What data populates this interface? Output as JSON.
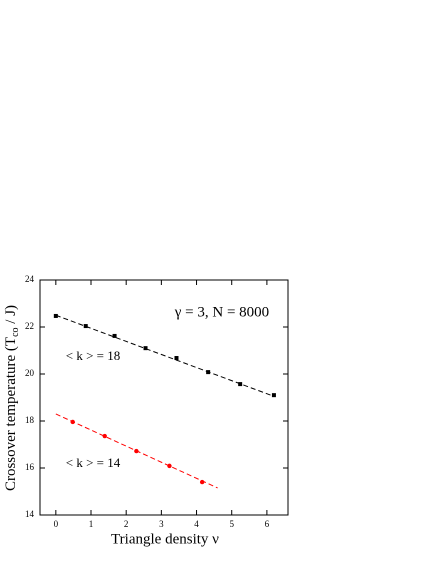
{
  "chart_data": {
    "type": "scatter",
    "annotation": "γ = 3,  N = 8000",
    "xlabel": "Triangle density  ν",
    "ylabel": [
      "Crossover temperature  (T",
      "co",
      "  / J)"
    ],
    "xlim": [
      -0.45,
      6.6
    ],
    "xticks": [
      0,
      1,
      2,
      3,
      4,
      5,
      6
    ],
    "ylim": [
      14,
      24
    ],
    "yticks": [
      14,
      16,
      18,
      20,
      22,
      24
    ],
    "series": [
      {
        "name": "< k > = 18",
        "color": "#000000",
        "marker": "square",
        "x": [
          0,
          0.85,
          1.67,
          2.55,
          3.43,
          4.33,
          5.24,
          6.2
        ],
        "values": [
          22.47,
          22.04,
          21.62,
          21.1,
          20.68,
          20.08,
          19.57,
          19.1
        ],
        "fit": {
          "x": [
            0,
            6.2
          ],
          "values": [
            22.5,
            19.05
          ]
        }
      },
      {
        "name": "< k > = 14",
        "color": "#ff0000",
        "marker": "circle",
        "x": [
          0.48,
          1.39,
          2.29,
          3.23,
          4.16
        ],
        "values": [
          17.96,
          17.36,
          16.72,
          16.09,
          15.4
        ],
        "fit": {
          "x": [
            0,
            4.6
          ],
          "values": [
            18.3,
            15.15
          ]
        }
      }
    ]
  }
}
